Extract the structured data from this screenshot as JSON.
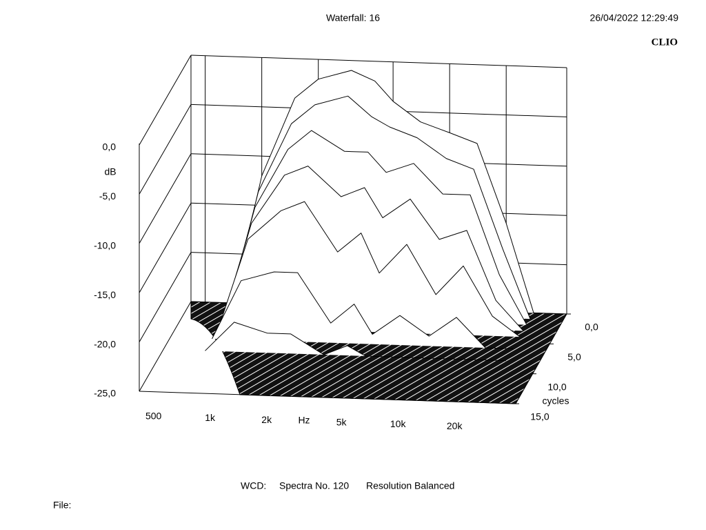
{
  "chart_data": {
    "type": "waterfall",
    "title": "Waterfall: 16",
    "timestamp": "26/04/2022 12:29:49",
    "brand": "CLIO",
    "y_label": "dB",
    "x_label": "Hz",
    "z_label": "cycles",
    "footer": [
      "WCD:",
      "Spectra No. 120",
      "Resolution Balanced"
    ],
    "file_label": "File:",
    "log_x": true,
    "xlim": [
      420,
      42000
    ],
    "xticks": [
      {
        "value": 500,
        "label": "500"
      },
      {
        "value": 1000,
        "label": "1k"
      },
      {
        "value": 2000,
        "label": "2k"
      },
      {
        "value": 5000,
        "label": "5k"
      },
      {
        "value": 10000,
        "label": "10k"
      },
      {
        "value": 20000,
        "label": "20k"
      }
    ],
    "ylim": [
      -25,
      0
    ],
    "yticks": [
      {
        "value": 0,
        "label": "0,0"
      },
      {
        "value": -5,
        "label": "-5,0"
      },
      {
        "value": -10,
        "label": "-10,0"
      },
      {
        "value": -15,
        "label": "-15,0"
      },
      {
        "value": -20,
        "label": "-20,0"
      },
      {
        "value": -25,
        "label": "-25,0"
      }
    ],
    "zlim": [
      0,
      15
    ],
    "zticks": [
      {
        "value": 0,
        "label": "0,0"
      },
      {
        "value": 5,
        "label": "5,0"
      },
      {
        "value": 10,
        "label": "10,0"
      },
      {
        "value": 15,
        "label": "15,0"
      }
    ],
    "x": [
      700,
      1000,
      1500,
      2000,
      3000,
      4000,
      5000,
      7000,
      10000,
      14000,
      20000,
      28000
    ],
    "slices": [
      {
        "cycles": 0,
        "values": [
          -25,
          -12,
          -4,
          -2,
          -1,
          -2,
          -4,
          -6,
          -7,
          -8,
          -16,
          -25
        ]
      },
      {
        "cycles": 1,
        "values": [
          -25,
          -13,
          -6,
          -4,
          -3,
          -5,
          -6,
          -7,
          -9,
          -10,
          -18,
          -25
        ]
      },
      {
        "cycles": 2,
        "values": [
          -25,
          -14,
          -8,
          -6,
          -8,
          -8,
          -10,
          -9,
          -12,
          -12,
          -20,
          -25
        ]
      },
      {
        "cycles": 3,
        "values": [
          -25,
          -15,
          -10,
          -9,
          -12,
          -11,
          -14,
          -12,
          -16,
          -15,
          -22,
          -25
        ]
      },
      {
        "cycles": 4,
        "values": [
          -25,
          -16,
          -13,
          -12,
          -17,
          -15,
          -19,
          -16,
          -21,
          -18,
          -23,
          -25
        ]
      },
      {
        "cycles": 6,
        "values": [
          -25,
          -19,
          -18,
          -18,
          -23,
          -21,
          -24,
          -22,
          -24,
          -22,
          -25,
          -25
        ]
      },
      {
        "cycles": 8,
        "values": [
          -25,
          -22,
          -23,
          -23,
          -25,
          -24,
          -25,
          -25,
          -25,
          -25,
          -25,
          -25
        ]
      }
    ]
  }
}
